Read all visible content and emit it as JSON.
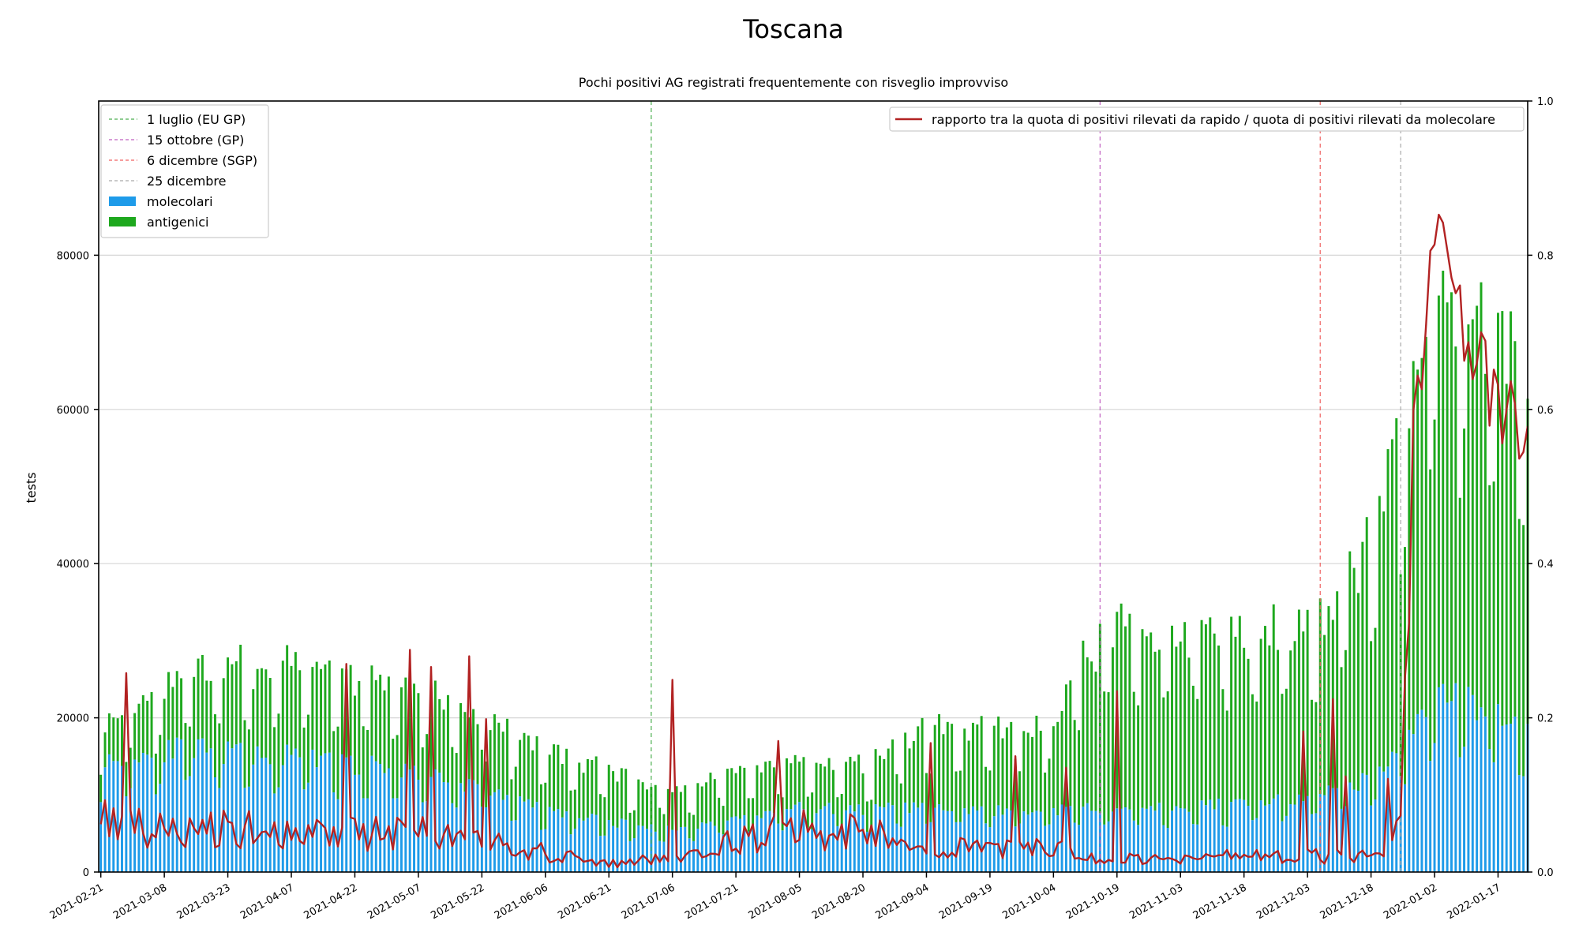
{
  "chart_data": {
    "type": "bar",
    "title": "Toscana",
    "subtitle": "Pochi positivi AG registrati frequentemente con risveglio improvviso",
    "ylabel": "tests",
    "ylim": [
      0,
      100000
    ],
    "y2lim": [
      0,
      1.0
    ],
    "yticks": [
      0,
      20000,
      40000,
      60000,
      80000
    ],
    "y2ticks": [
      "0.0",
      "0.2",
      "0.4",
      "0.6",
      "0.8",
      "1.0"
    ],
    "grid": true,
    "x_start": "2021-02-21",
    "x_end": "2022-01-24",
    "xticks": [
      "2021-02-21",
      "2021-03-08",
      "2021-03-23",
      "2021-04-07",
      "2021-04-22",
      "2021-05-07",
      "2021-05-22",
      "2021-06-06",
      "2021-06-21",
      "2021-07-06",
      "2021-07-21",
      "2021-08-05",
      "2021-08-20",
      "2021-09-04",
      "2021-09-19",
      "2021-10-04",
      "2021-10-19",
      "2021-11-03",
      "2021-11-18",
      "2021-12-03",
      "2021-12-18",
      "2022-01-02",
      "2022-01-17"
    ],
    "vlines": [
      {
        "date": "2021-07-01",
        "label": "1 luglio (EU GP)",
        "color": "#4caf50"
      },
      {
        "date": "2021-10-15",
        "label": "15 ottobre (GP)",
        "color": "#c060c0"
      },
      {
        "date": "2021-12-06",
        "label": "6 dicembre (SGP)",
        "color": "#f06060"
      },
      {
        "date": "2021-12-25",
        "label": "25 dicembre",
        "color": "#aaaaaa"
      }
    ],
    "legend_left_placement": "upper-left",
    "legend_right_placement": "upper-right",
    "series": [
      {
        "name": "molecolari",
        "kind": "bar",
        "color": "#1e9be9",
        "keypoints": [
          [
            "2021-02-21",
            14000
          ],
          [
            "2021-03-10",
            16000
          ],
          [
            "2021-04-07",
            15000
          ],
          [
            "2021-04-22",
            14000
          ],
          [
            "2021-05-07",
            13000
          ],
          [
            "2021-05-22",
            11000
          ],
          [
            "2021-06-06",
            8000
          ],
          [
            "2021-06-21",
            6500
          ],
          [
            "2021-07-06",
            5500
          ],
          [
            "2021-07-21",
            7000
          ],
          [
            "2021-08-05",
            8500
          ],
          [
            "2021-08-20",
            8000
          ],
          [
            "2021-09-04",
            8500
          ],
          [
            "2021-09-19",
            8000
          ],
          [
            "2021-10-04",
            8000
          ],
          [
            "2021-10-19",
            8500
          ],
          [
            "2021-11-03",
            8500
          ],
          [
            "2021-11-18",
            9000
          ],
          [
            "2021-12-03",
            9500
          ],
          [
            "2021-12-18",
            12000
          ],
          [
            "2021-12-28",
            18000
          ],
          [
            "2022-01-02",
            23000
          ],
          [
            "2022-01-10",
            22000
          ],
          [
            "2022-01-17",
            21000
          ],
          [
            "2022-01-24",
            18000
          ]
        ]
      },
      {
        "name": "antigenici",
        "kind": "bar",
        "color": "#1ea81e",
        "keypoints": [
          [
            "2021-02-21",
            5000
          ],
          [
            "2021-03-10",
            9000
          ],
          [
            "2021-03-25",
            11000
          ],
          [
            "2021-04-07",
            12000
          ],
          [
            "2021-04-22",
            12000
          ],
          [
            "2021-05-07",
            11000
          ],
          [
            "2021-05-22",
            9000
          ],
          [
            "2021-06-06",
            8000
          ],
          [
            "2021-06-21",
            6500
          ],
          [
            "2021-07-06",
            5000
          ],
          [
            "2021-07-21",
            6000
          ],
          [
            "2021-08-05",
            6000
          ],
          [
            "2021-08-20",
            6000
          ],
          [
            "2021-09-04",
            10000
          ],
          [
            "2021-09-19",
            11000
          ],
          [
            "2021-10-04",
            11000
          ],
          [
            "2021-10-12",
            20000
          ],
          [
            "2021-10-19",
            24000
          ],
          [
            "2021-11-03",
            22000
          ],
          [
            "2021-11-18",
            22000
          ],
          [
            "2021-12-03",
            22000
          ],
          [
            "2021-12-18",
            30000
          ],
          [
            "2021-12-28",
            45000
          ],
          [
            "2022-01-02",
            52000
          ],
          [
            "2022-01-10",
            50000
          ],
          [
            "2022-01-17",
            52000
          ],
          [
            "2022-01-24",
            45000
          ]
        ]
      },
      {
        "name": "rapporto tra la quota di positivi rilevati da rapido / quota di positivi rilevati da molecolare",
        "kind": "line",
        "axis": "right",
        "color": "#b22222",
        "keypoints": [
          [
            "2021-02-21",
            0.07
          ],
          [
            "2021-03-08",
            0.055
          ],
          [
            "2021-03-23",
            0.06
          ],
          [
            "2021-04-07",
            0.05
          ],
          [
            "2021-04-22",
            0.05
          ],
          [
            "2021-05-07",
            0.05
          ],
          [
            "2021-05-22",
            0.04
          ],
          [
            "2021-06-06",
            0.025
          ],
          [
            "2021-06-21",
            0.01
          ],
          [
            "2021-07-06",
            0.02
          ],
          [
            "2021-07-21",
            0.04
          ],
          [
            "2021-08-05",
            0.06
          ],
          [
            "2021-08-20",
            0.05
          ],
          [
            "2021-09-04",
            0.03
          ],
          [
            "2021-09-19",
            0.03
          ],
          [
            "2021-10-04",
            0.03
          ],
          [
            "2021-10-19",
            0.015
          ],
          [
            "2021-11-03",
            0.02
          ],
          [
            "2021-11-18",
            0.02
          ],
          [
            "2021-12-03",
            0.02
          ],
          [
            "2021-12-18",
            0.02
          ],
          [
            "2021-12-25",
            0.05
          ],
          [
            "2021-12-28",
            0.55
          ],
          [
            "2021-12-31",
            0.72
          ],
          [
            "2022-01-03",
            0.86
          ],
          [
            "2022-01-06",
            0.8
          ],
          [
            "2022-01-09",
            0.72
          ],
          [
            "2022-01-12",
            0.65
          ],
          [
            "2022-01-17",
            0.6
          ],
          [
            "2022-01-20",
            0.58
          ],
          [
            "2022-01-24",
            0.56
          ]
        ]
      }
    ]
  }
}
